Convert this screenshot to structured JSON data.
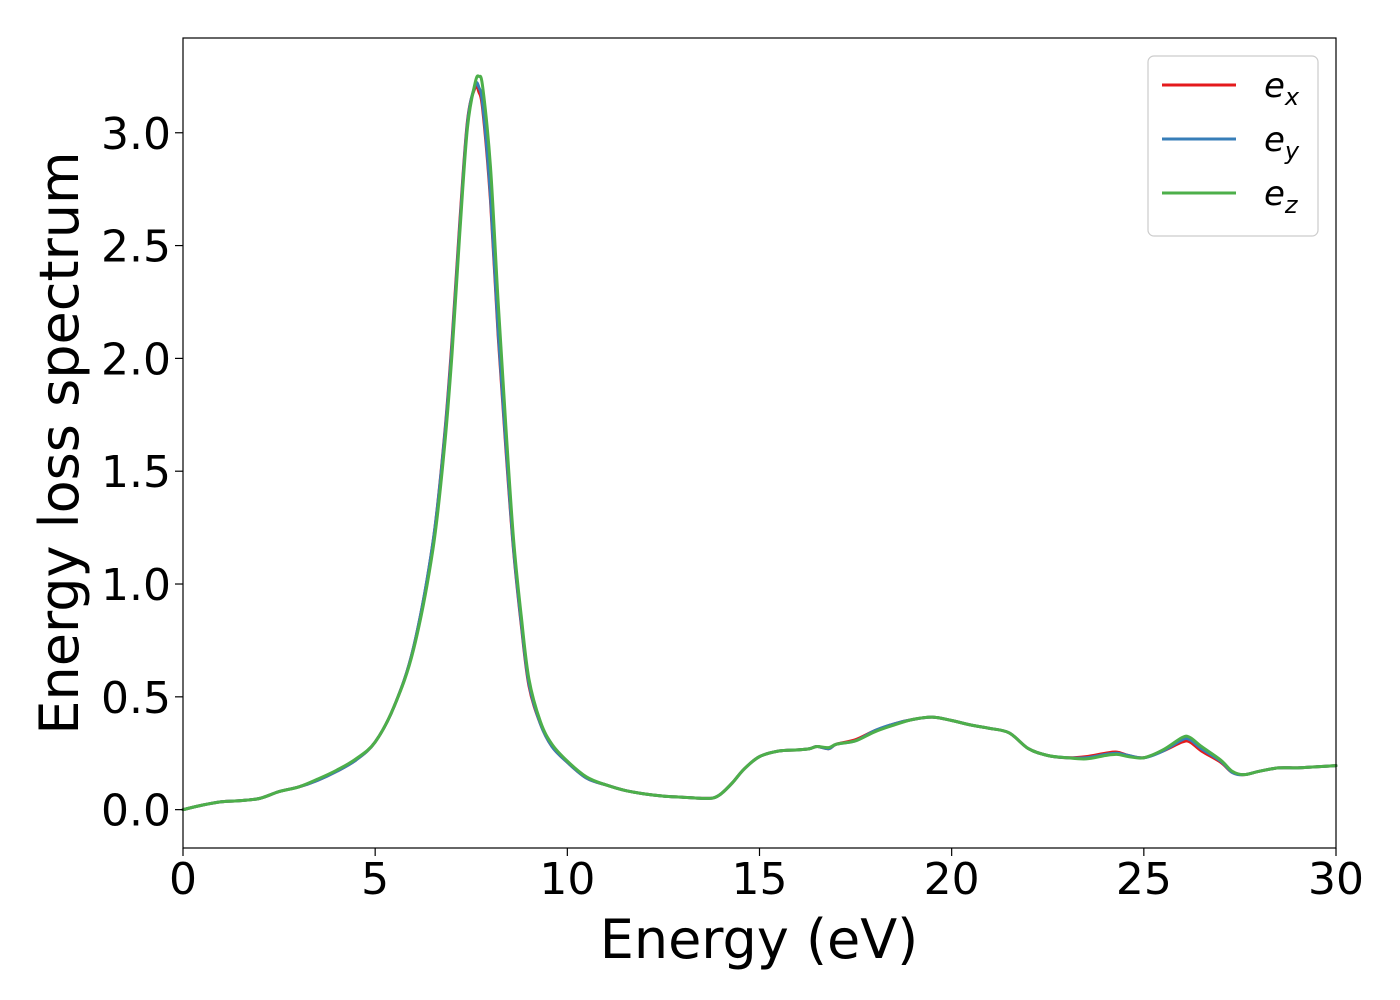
{
  "chart_data": {
    "type": "line",
    "title": "",
    "xlabel": "Energy (eV)",
    "ylabel": "Energy loss spectrum",
    "xlim": [
      0,
      30
    ],
    "ylim": [
      -0.17,
      3.42
    ],
    "xticks": [
      0,
      5,
      10,
      15,
      20,
      25,
      30
    ],
    "xtick_labels": [
      "0",
      "5",
      "10",
      "15",
      "20",
      "25",
      "30"
    ],
    "yticks": [
      0.0,
      0.5,
      1.0,
      1.5,
      2.0,
      2.5,
      3.0
    ],
    "ytick_labels": [
      "0.0",
      "0.5",
      "1.0",
      "1.5",
      "2.0",
      "2.5",
      "3.0"
    ],
    "grid": false,
    "legend_position": "top-right",
    "series": [
      {
        "name": "e_x",
        "label_base": "e",
        "label_sub": "x",
        "color": "#e41a1c",
        "x": [
          0,
          0.5,
          1,
          1.5,
          2,
          2.5,
          3,
          3.5,
          4,
          4.5,
          5,
          5.5,
          6,
          6.5,
          6.8,
          7.0,
          7.2,
          7.4,
          7.6,
          7.7,
          7.8,
          8.0,
          8.2,
          8.4,
          8.6,
          8.8,
          9.0,
          9.3,
          9.6,
          10,
          10.5,
          11,
          11.5,
          12,
          12.5,
          13,
          13.5,
          13.8,
          14,
          14.3,
          14.6,
          15,
          15.5,
          16,
          16.3,
          16.5,
          16.8,
          17,
          17.5,
          18,
          18.5,
          19,
          19.5,
          20,
          20.5,
          21,
          21.5,
          22,
          22.5,
          23,
          23.5,
          24,
          24.3,
          24.6,
          25,
          25.5,
          26,
          26.2,
          26.5,
          27,
          27.3,
          27.6,
          28,
          28.5,
          29,
          29.5,
          30
        ],
        "y": [
          0.0,
          0.02,
          0.035,
          0.04,
          0.05,
          0.08,
          0.1,
          0.13,
          0.17,
          0.22,
          0.3,
          0.46,
          0.72,
          1.18,
          1.65,
          2.08,
          2.6,
          3.05,
          3.2,
          3.18,
          3.1,
          2.7,
          2.1,
          1.6,
          1.15,
          0.82,
          0.55,
          0.38,
          0.28,
          0.21,
          0.14,
          0.11,
          0.085,
          0.07,
          0.06,
          0.055,
          0.05,
          0.052,
          0.07,
          0.12,
          0.18,
          0.235,
          0.26,
          0.265,
          0.27,
          0.28,
          0.27,
          0.29,
          0.31,
          0.35,
          0.38,
          0.4,
          0.41,
          0.395,
          0.375,
          0.36,
          0.34,
          0.27,
          0.24,
          0.23,
          0.235,
          0.25,
          0.255,
          0.24,
          0.23,
          0.26,
          0.3,
          0.3,
          0.26,
          0.21,
          0.165,
          0.155,
          0.17,
          0.185,
          0.185,
          0.19,
          0.195
        ]
      },
      {
        "name": "e_y",
        "label_base": "e",
        "label_sub": "y",
        "color": "#377eb8",
        "x": [
          0,
          0.5,
          1,
          1.5,
          2,
          2.5,
          3,
          3.5,
          4,
          4.5,
          5,
          5.5,
          6,
          6.5,
          6.8,
          7.0,
          7.2,
          7.4,
          7.6,
          7.7,
          7.8,
          8.0,
          8.2,
          8.4,
          8.6,
          8.8,
          9.0,
          9.3,
          9.6,
          10,
          10.5,
          11,
          11.5,
          12,
          12.5,
          13,
          13.5,
          13.8,
          14,
          14.3,
          14.6,
          15,
          15.5,
          16,
          16.3,
          16.5,
          16.8,
          17,
          17.5,
          18,
          18.5,
          19,
          19.5,
          20,
          20.5,
          21,
          21.5,
          22,
          22.5,
          23,
          23.5,
          24,
          24.3,
          24.6,
          25,
          25.5,
          26,
          26.2,
          26.5,
          27,
          27.3,
          27.6,
          28,
          28.5,
          29,
          29.5,
          30
        ],
        "y": [
          0.0,
          0.02,
          0.035,
          0.04,
          0.05,
          0.08,
          0.1,
          0.13,
          0.17,
          0.22,
          0.3,
          0.46,
          0.72,
          1.18,
          1.64,
          2.06,
          2.58,
          3.04,
          3.21,
          3.2,
          3.12,
          2.72,
          2.12,
          1.62,
          1.16,
          0.83,
          0.56,
          0.38,
          0.28,
          0.21,
          0.14,
          0.11,
          0.085,
          0.07,
          0.06,
          0.055,
          0.05,
          0.052,
          0.07,
          0.12,
          0.18,
          0.235,
          0.26,
          0.265,
          0.27,
          0.28,
          0.27,
          0.29,
          0.305,
          0.35,
          0.38,
          0.4,
          0.41,
          0.395,
          0.375,
          0.36,
          0.34,
          0.27,
          0.24,
          0.23,
          0.23,
          0.245,
          0.25,
          0.24,
          0.23,
          0.26,
          0.31,
          0.31,
          0.27,
          0.215,
          0.165,
          0.155,
          0.17,
          0.185,
          0.185,
          0.19,
          0.195
        ]
      },
      {
        "name": "e_z",
        "label_base": "e",
        "label_sub": "z",
        "color": "#4daf4a",
        "x": [
          0,
          0.5,
          1,
          1.5,
          2,
          2.5,
          3,
          3.5,
          4,
          4.5,
          5,
          5.5,
          6,
          6.5,
          6.8,
          7.0,
          7.2,
          7.4,
          7.6,
          7.7,
          7.8,
          8.0,
          8.2,
          8.4,
          8.6,
          8.8,
          9.0,
          9.3,
          9.6,
          10,
          10.5,
          11,
          11.5,
          12,
          12.5,
          13,
          13.5,
          13.8,
          14,
          14.3,
          14.6,
          15,
          15.5,
          16,
          16.3,
          16.5,
          16.8,
          17,
          17.5,
          18,
          18.5,
          19,
          19.5,
          20,
          20.5,
          21,
          21.5,
          22,
          22.5,
          23,
          23.5,
          24,
          24.3,
          24.6,
          25,
          25.5,
          26,
          26.2,
          26.5,
          27,
          27.3,
          27.6,
          28,
          28.5,
          29,
          29.5,
          30
        ],
        "y": [
          0.0,
          0.02,
          0.035,
          0.04,
          0.05,
          0.08,
          0.1,
          0.135,
          0.175,
          0.225,
          0.3,
          0.46,
          0.71,
          1.15,
          1.6,
          2.02,
          2.55,
          3.02,
          3.22,
          3.25,
          3.2,
          2.85,
          2.25,
          1.7,
          1.2,
          0.86,
          0.58,
          0.39,
          0.29,
          0.215,
          0.145,
          0.11,
          0.085,
          0.07,
          0.06,
          0.055,
          0.05,
          0.052,
          0.07,
          0.12,
          0.18,
          0.235,
          0.26,
          0.265,
          0.27,
          0.28,
          0.275,
          0.29,
          0.305,
          0.345,
          0.375,
          0.4,
          0.41,
          0.395,
          0.375,
          0.36,
          0.34,
          0.27,
          0.24,
          0.23,
          0.225,
          0.24,
          0.245,
          0.235,
          0.23,
          0.265,
          0.32,
          0.32,
          0.28,
          0.22,
          0.17,
          0.155,
          0.17,
          0.185,
          0.185,
          0.19,
          0.195
        ]
      }
    ]
  }
}
